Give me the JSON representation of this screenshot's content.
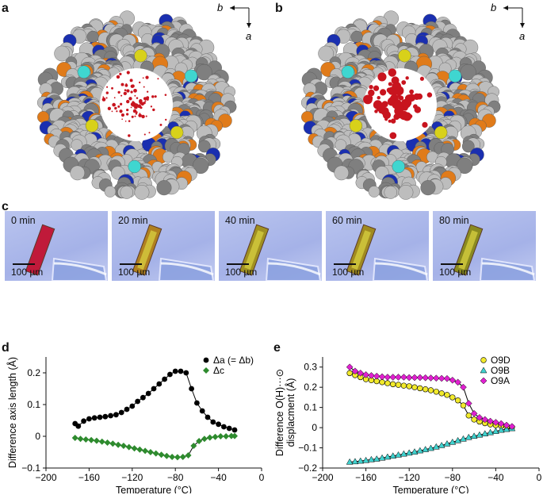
{
  "labels": {
    "a": "a",
    "b": "b",
    "c": "c",
    "d": "d",
    "e": "e"
  },
  "crystal_axes": {
    "b": "b",
    "a": "a"
  },
  "micrographs": [
    {
      "time": "0 min",
      "scale": "100 µm"
    },
    {
      "time": "20 min",
      "scale": "100 µm"
    },
    {
      "time": "40 min",
      "scale": "100 µm"
    },
    {
      "time": "60 min",
      "scale": "100 µm"
    },
    {
      "time": "80 min",
      "scale": "100 µm"
    }
  ],
  "colors": {
    "carbon": "#7f7f7f",
    "hydrogen": "#bdbdbd",
    "nitrogen": "#1a2fb0",
    "oxygen": "#e07b1a",
    "sulfur": "#d8d11a",
    "cyan": "#3fd6d0",
    "guest": "#c8141e",
    "series_a": "#000000",
    "series_c": "#2e8b2e",
    "O9D": "#f2ea2c",
    "O9B": "#40d2cf",
    "O9A": "#e020d0"
  },
  "chart_data": [
    {
      "type": "scatter",
      "title": "",
      "xlabel": "Temperature (°C)",
      "ylabel": "Difference axis length (Å)",
      "xlim": [
        -200,
        0
      ],
      "ylim": [
        -0.1,
        0.25
      ],
      "xticks": [
        "−200",
        "−160",
        "−120",
        "−80",
        "−40",
        "0"
      ],
      "yticks": [
        "−0.1",
        "0",
        "0.1",
        "0.2"
      ],
      "legend_position": "top-right",
      "series": [
        {
          "name": "Δa (= Δb)",
          "marker": "circle",
          "color": "#000000",
          "x": [
            -173,
            -170,
            -165,
            -160,
            -155,
            -150,
            -145,
            -140,
            -135,
            -130,
            -125,
            -120,
            -115,
            -110,
            -105,
            -100,
            -95,
            -90,
            -85,
            -80,
            -75,
            -70,
            -65,
            -60,
            -55,
            -50,
            -45,
            -40,
            -35,
            -30,
            -25
          ],
          "y": [
            0.04,
            0.032,
            0.048,
            0.055,
            0.058,
            0.06,
            0.062,
            0.065,
            0.068,
            0.075,
            0.085,
            0.095,
            0.11,
            0.122,
            0.135,
            0.15,
            0.165,
            0.18,
            0.195,
            0.205,
            0.205,
            0.2,
            0.15,
            0.105,
            0.08,
            0.06,
            0.045,
            0.038,
            0.03,
            0.025,
            0.02
          ]
        },
        {
          "name": "Δc",
          "marker": "diamond",
          "color": "#2e8b2e",
          "x": [
            -173,
            -168,
            -163,
            -158,
            -153,
            -148,
            -143,
            -138,
            -133,
            -128,
            -123,
            -118,
            -113,
            -108,
            -103,
            -98,
            -93,
            -88,
            -83,
            -78,
            -73,
            -68,
            -63,
            -58,
            -53,
            -48,
            -43,
            -38,
            -33,
            -28,
            -25
          ],
          "y": [
            -0.005,
            -0.008,
            -0.01,
            -0.012,
            -0.014,
            -0.017,
            -0.02,
            -0.023,
            -0.027,
            -0.03,
            -0.034,
            -0.038,
            -0.042,
            -0.046,
            -0.05,
            -0.054,
            -0.058,
            -0.062,
            -0.065,
            -0.066,
            -0.065,
            -0.06,
            -0.03,
            -0.015,
            -0.008,
            -0.004,
            -0.002,
            0.0,
            0.0,
            0.001,
            0.001
          ]
        }
      ]
    },
    {
      "type": "scatter",
      "title": "",
      "xlabel": "Temperature (°C)",
      "ylabel": "Difference O(H)···⊙ displacment (Å)",
      "ylabel_lines": [
        "Difference O(H)···⊙",
        "displacment (Å)"
      ],
      "xlim": [
        -200,
        0
      ],
      "ylim": [
        -0.2,
        0.35
      ],
      "xticks": [
        "−200",
        "−160",
        "−120",
        "−80",
        "−40",
        "0"
      ],
      "yticks": [
        "−0.2",
        "−0.1",
        "0",
        "0.1",
        "0.2",
        "0.3"
      ],
      "legend_position": "top-right",
      "series": [
        {
          "name": "O9D",
          "marker": "circle",
          "color": "#f2ea2c",
          "x": [
            -175,
            -170,
            -165,
            -160,
            -155,
            -150,
            -145,
            -140,
            -135,
            -130,
            -125,
            -120,
            -115,
            -110,
            -105,
            -100,
            -95,
            -90,
            -85,
            -80,
            -75,
            -70,
            -65,
            -60,
            -55,
            -50,
            -45,
            -40,
            -35,
            -30,
            -25
          ],
          "y": [
            0.27,
            0.26,
            0.25,
            0.24,
            0.235,
            0.23,
            0.225,
            0.22,
            0.215,
            0.212,
            0.208,
            0.205,
            0.2,
            0.195,
            0.19,
            0.185,
            0.178,
            0.17,
            0.162,
            0.15,
            0.135,
            0.11,
            0.06,
            0.04,
            0.03,
            0.022,
            0.016,
            0.012,
            0.008,
            0.004,
            0.002
          ]
        },
        {
          "name": "O9B",
          "marker": "triangle",
          "color": "#40d2cf",
          "x": [
            -175,
            -170,
            -165,
            -160,
            -155,
            -150,
            -145,
            -140,
            -135,
            -130,
            -125,
            -120,
            -115,
            -110,
            -105,
            -100,
            -95,
            -90,
            -85,
            -80,
            -75,
            -70,
            -65,
            -60,
            -55,
            -50,
            -45,
            -40,
            -35,
            -30,
            -25
          ],
          "y": [
            -0.17,
            -0.168,
            -0.165,
            -0.162,
            -0.158,
            -0.155,
            -0.15,
            -0.145,
            -0.14,
            -0.135,
            -0.13,
            -0.125,
            -0.12,
            -0.114,
            -0.108,
            -0.102,
            -0.095,
            -0.088,
            -0.08,
            -0.072,
            -0.064,
            -0.056,
            -0.048,
            -0.042,
            -0.036,
            -0.03,
            -0.024,
            -0.018,
            -0.012,
            -0.008,
            -0.004
          ]
        },
        {
          "name": "O9A",
          "marker": "diamond",
          "color": "#e020d0",
          "x": [
            -175,
            -170,
            -165,
            -160,
            -155,
            -150,
            -145,
            -140,
            -135,
            -130,
            -125,
            -120,
            -115,
            -110,
            -105,
            -100,
            -95,
            -90,
            -85,
            -80,
            -75,
            -70,
            -65,
            -60,
            -55,
            -50,
            -45,
            -40,
            -35,
            -30,
            -25
          ],
          "y": [
            0.3,
            0.28,
            0.27,
            0.262,
            0.258,
            0.255,
            0.252,
            0.25,
            0.25,
            0.25,
            0.25,
            0.248,
            0.248,
            0.248,
            0.247,
            0.246,
            0.245,
            0.244,
            0.243,
            0.235,
            0.225,
            0.2,
            0.12,
            0.07,
            0.05,
            0.04,
            0.032,
            0.026,
            0.02,
            0.012,
            0.006
          ]
        }
      ]
    }
  ]
}
